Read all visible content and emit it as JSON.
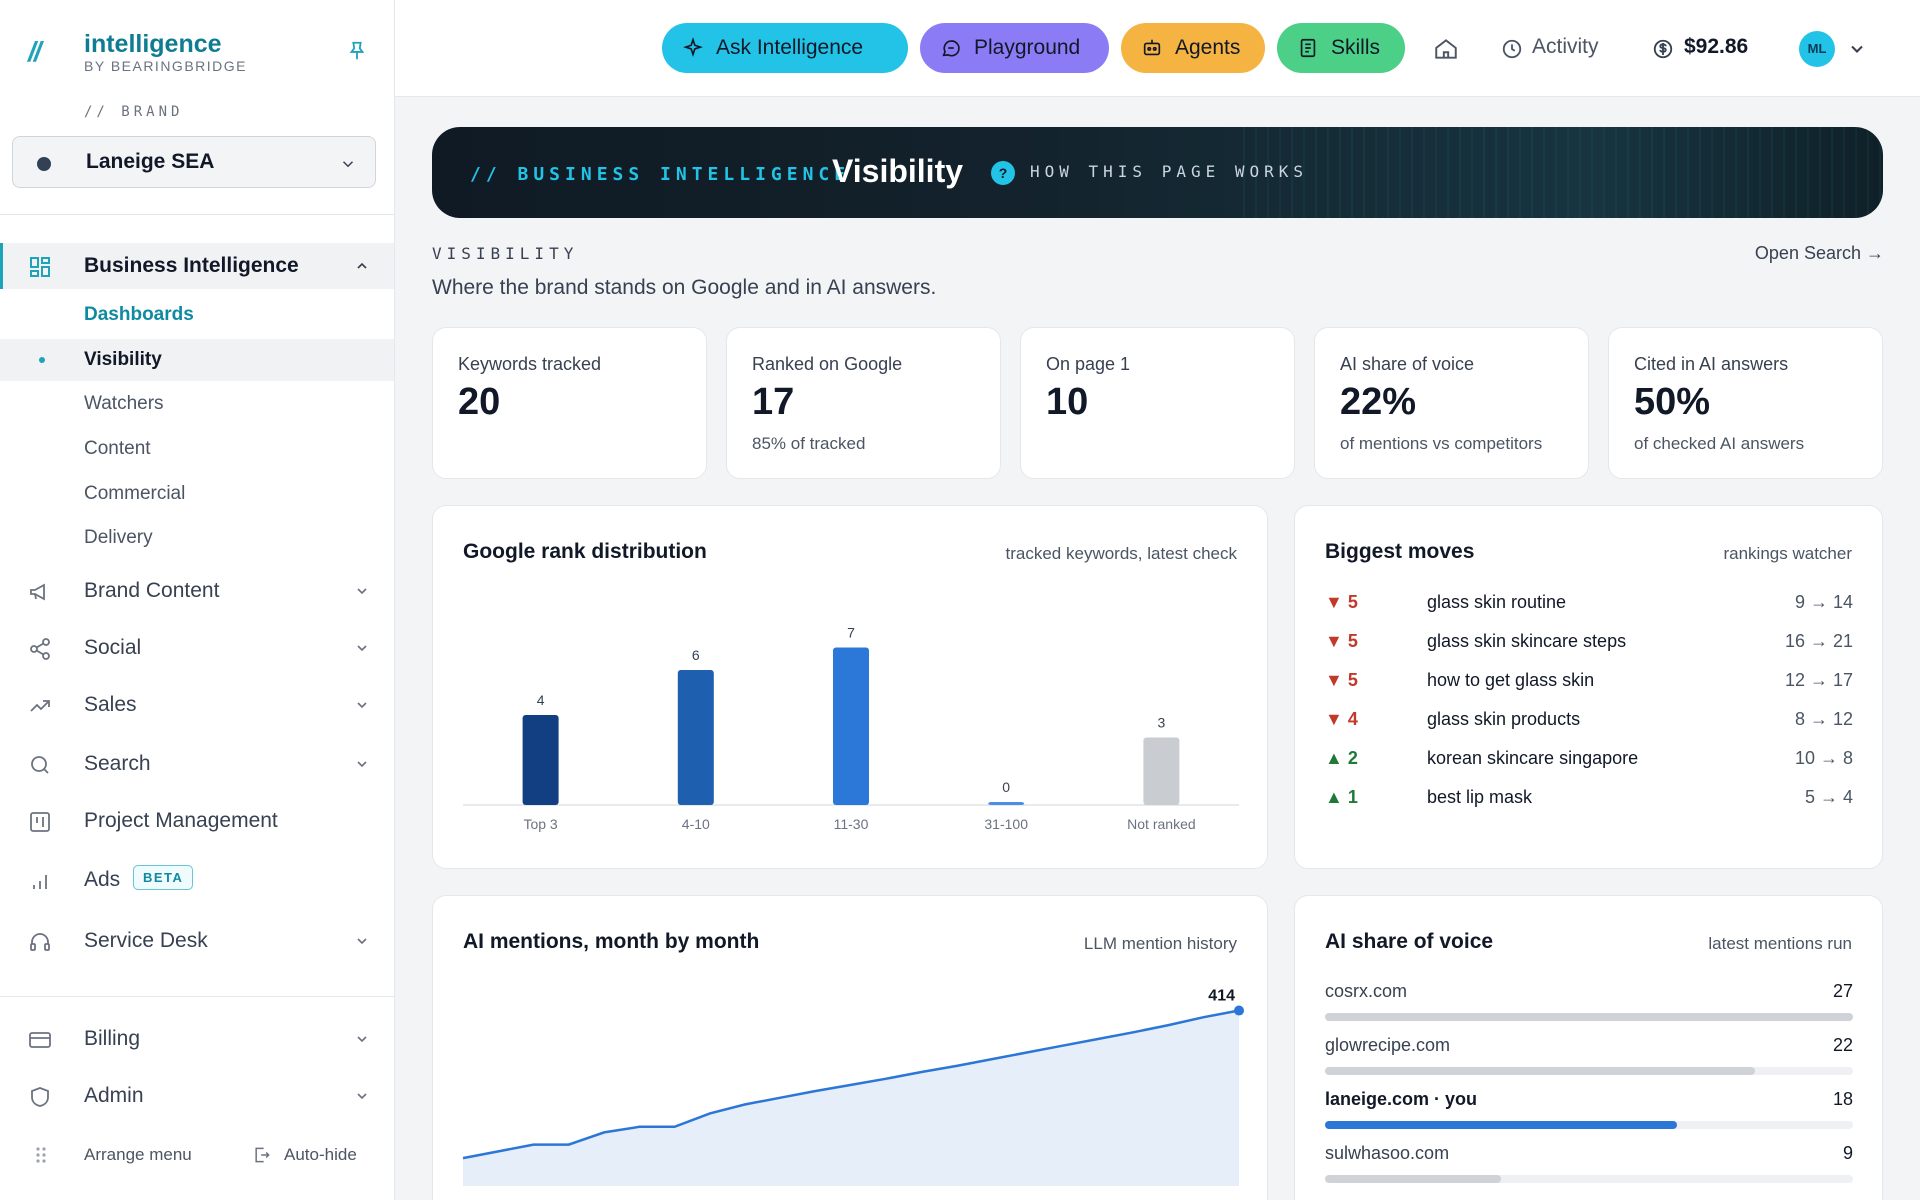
{
  "sidebar": {
    "logo_mark": "//",
    "logo_name": "intelligence",
    "logo_sub": "BY BEARINGBRIDGE",
    "brand_label": "// BRAND",
    "brand_value": "Laneige SEA",
    "nav": {
      "business_intelligence": "Business Intelligence",
      "dashboards": "Dashboards",
      "visibility": "Visibility",
      "watchers": "Watchers",
      "content": "Content",
      "commercial": "Commercial",
      "delivery": "Delivery",
      "brand_content": "Brand Content",
      "social": "Social",
      "sales": "Sales",
      "search": "Search",
      "project_management": "Project Management",
      "ads": "Ads",
      "ads_badge": "BETA",
      "service_desk": "Service Desk"
    },
    "bottom": {
      "billing": "Billing",
      "admin": "Admin",
      "arrange": "Arrange menu",
      "autohide": "Auto-hide"
    }
  },
  "topbar": {
    "ask": "Ask Intelligence",
    "playground": "Playground",
    "agents": "Agents",
    "skills": "Skills",
    "activity": "Activity",
    "balance": "$92.86",
    "avatar_initials": "ML"
  },
  "hero": {
    "tag": "// BUSINESS INTELLIGENCE",
    "title": "Visibility",
    "help": "HOW THIS PAGE WORKS"
  },
  "section": {
    "eyebrow": "VISIBILITY",
    "description": "Where the brand stands on Google and in AI answers.",
    "link": "Open Search →"
  },
  "kpis": [
    {
      "label": "Keywords tracked",
      "value": "20",
      "sub": ""
    },
    {
      "label": "Ranked on Google",
      "value": "17",
      "sub": "85% of tracked"
    },
    {
      "label": "On page 1",
      "value": "10",
      "sub": ""
    },
    {
      "label": "AI share of voice",
      "value": "22%",
      "sub": "of mentions vs competitors"
    },
    {
      "label": "Cited in AI answers",
      "value": "50%",
      "sub": "of checked AI answers"
    }
  ],
  "rank_panel": {
    "title": "Google rank distribution",
    "meta": "tracked keywords, latest check"
  },
  "moves_panel": {
    "title": "Biggest moves",
    "meta": "rankings watcher",
    "rows": [
      {
        "dir": "down",
        "delta": "▼ 5",
        "keyword": "glass skin routine",
        "rank": "9 → 14"
      },
      {
        "dir": "down",
        "delta": "▼ 5",
        "keyword": "glass skin skincare steps",
        "rank": "16 → 21"
      },
      {
        "dir": "down",
        "delta": "▼ 5",
        "keyword": "how to get glass skin",
        "rank": "12 → 17"
      },
      {
        "dir": "down",
        "delta": "▼ 4",
        "keyword": "glass skin products",
        "rank": "8 → 12"
      },
      {
        "dir": "up",
        "delta": "▲ 2",
        "keyword": "korean skincare singapore",
        "rank": "10 → 8"
      },
      {
        "dir": "up",
        "delta": "▲ 1",
        "keyword": "best lip mask",
        "rank": "5 → 4"
      }
    ]
  },
  "mentions_panel": {
    "title": "AI mentions, month by month",
    "meta": "LLM mention history"
  },
  "sov_panel": {
    "title": "AI share of voice",
    "meta": "latest mentions run",
    "max": 27,
    "rows": [
      {
        "name": "cosrx.com",
        "value": "27",
        "num": 27,
        "you": false
      },
      {
        "name": "glowrecipe.com",
        "value": "22",
        "num": 22,
        "you": false
      },
      {
        "name": "laneige.com · you",
        "value": "18",
        "num": 18,
        "you": true
      },
      {
        "name": "sulwhasoo.com",
        "value": "9",
        "num": 9,
        "you": false
      }
    ]
  },
  "colors": {
    "accent": "#1fa3b8",
    "bar_top3": "#123f82",
    "bar_4_10": "#1e5fb0",
    "bar_11_30": "#2b78d8",
    "bar_31_100": "#4a8ee6",
    "bar_not_ranked": "#c9cdd2",
    "line": "#2b76d6",
    "area": "#e6eef9",
    "down": "#c0392b",
    "up": "#1f7a3a"
  },
  "chart_data": [
    {
      "type": "bar",
      "title": "Google rank distribution",
      "categories": [
        "Top 3",
        "4-10",
        "11-30",
        "31-100",
        "Not ranked"
      ],
      "values": [
        4,
        6,
        7,
        0,
        3
      ],
      "ylim": [
        0,
        8
      ],
      "grid": false
    },
    {
      "type": "area",
      "title": "AI mentions, month by month",
      "values": [
        150,
        162,
        174,
        174,
        196,
        206,
        206,
        230,
        246,
        258,
        270,
        281,
        292,
        304,
        315,
        327,
        339,
        351,
        363,
        375,
        388,
        402,
        414
      ],
      "end_label": "414",
      "ylim": [
        0,
        440
      ],
      "grid": false
    }
  ]
}
